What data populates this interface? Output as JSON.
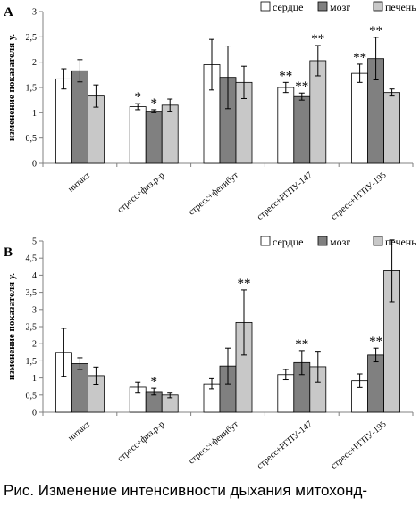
{
  "colors": {
    "сердце": "#ffffff",
    "мозг": "#808080",
    "печень": "#c8c8c8",
    "axis": "#808080",
    "stroke": "#000000"
  },
  "caption": "Рис. Изменение интенсивности дыхания митохонд-",
  "chart_data": [
    {
      "type": "bar",
      "panel_label": "А",
      "ylabel": "изменение показателя у.",
      "ylim": [
        0,
        3
      ],
      "yticks": [
        "0",
        "0,5",
        "1",
        "1,5",
        "2",
        "2,5",
        "3"
      ],
      "grid": false,
      "legend": {
        "position": "top-right",
        "entries": [
          "сердце",
          "мозг",
          "печень"
        ]
      },
      "categories": [
        "интакт",
        "стресс+физ.р-р",
        "стресс+фенибут",
        "стресс+РГПУ-147",
        "стресс+РГПУ-195"
      ],
      "series": [
        {
          "name": "сердце",
          "values": [
            1.67,
            1.12,
            1.95,
            1.5,
            1.78
          ],
          "errors": [
            0.2,
            0.06,
            0.5,
            0.1,
            0.18
          ],
          "annotations": [
            "",
            "*",
            "",
            "**",
            "**"
          ]
        },
        {
          "name": "мозг",
          "values": [
            1.83,
            1.03,
            1.7,
            1.32,
            2.07
          ],
          "errors": [
            0.22,
            0.03,
            0.62,
            0.07,
            0.42
          ],
          "annotations": [
            "",
            "*",
            "",
            "**",
            "**"
          ]
        },
        {
          "name": "печень",
          "values": [
            1.33,
            1.15,
            1.6,
            2.03,
            1.4
          ],
          "errors": [
            0.22,
            0.12,
            0.32,
            0.3,
            0.07
          ],
          "annotations": [
            "",
            "",
            "",
            "**",
            ""
          ]
        }
      ]
    },
    {
      "type": "bar",
      "panel_label": "B",
      "ylabel": "изменение показателя у.",
      "ylim": [
        0,
        5
      ],
      "yticks": [
        "0",
        "0,5",
        "1",
        "1,5",
        "2",
        "2,5",
        "3",
        "3,5",
        "4",
        "4,5",
        "5"
      ],
      "grid": false,
      "legend": {
        "position": "top-right",
        "entries": [
          "сердце",
          "мозг",
          "печень"
        ]
      },
      "categories": [
        "интакт",
        "стресс+физ.р-р",
        "стресс+фенибут",
        "стресс+РГПУ-147",
        "стресс+РГПУ-195"
      ],
      "series": [
        {
          "name": "сердце",
          "values": [
            1.75,
            0.73,
            0.83,
            1.1,
            0.92
          ],
          "errors": [
            0.7,
            0.15,
            0.15,
            0.15,
            0.2
          ],
          "annotations": [
            "",
            "",
            "",
            "",
            ""
          ]
        },
        {
          "name": "мозг",
          "values": [
            1.42,
            0.6,
            1.35,
            1.45,
            1.67
          ],
          "errors": [
            0.17,
            0.1,
            0.52,
            0.35,
            0.2
          ],
          "annotations": [
            "",
            "*",
            "",
            "**",
            "**"
          ]
        },
        {
          "name": "печень",
          "values": [
            1.07,
            0.5,
            2.62,
            1.33,
            4.13
          ],
          "errors": [
            0.25,
            0.08,
            0.95,
            0.45,
            0.9
          ],
          "annotations": [
            "",
            "",
            "**",
            "",
            ""
          ]
        }
      ]
    }
  ]
}
